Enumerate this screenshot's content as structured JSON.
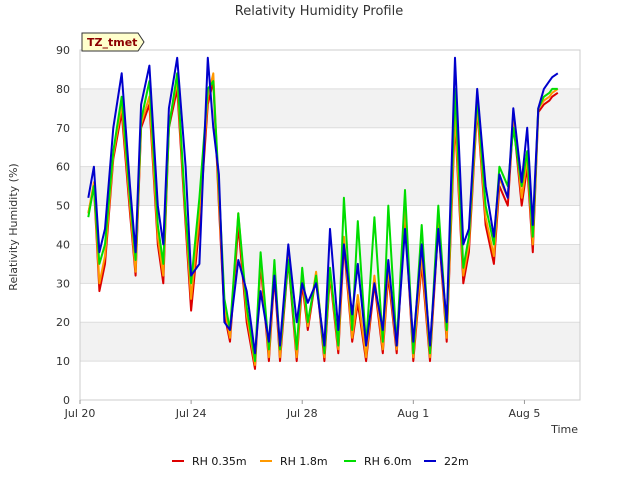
{
  "chart_data": {
    "type": "line",
    "title": "Relativity Humidity Profile",
    "xlabel": "Time",
    "ylabel": "Relativity Humidity (%)",
    "site_label": "TZ_tmet",
    "ylim": [
      0,
      90
    ],
    "xlim": [
      0,
      18
    ],
    "x_unit": "days since Jul 20",
    "y_ticks": [
      0,
      10,
      20,
      30,
      40,
      50,
      60,
      70,
      80,
      90
    ],
    "x_ticks": [
      {
        "value": 0,
        "label": "Jul 20"
      },
      {
        "value": 4,
        "label": "Jul 24"
      },
      {
        "value": 8,
        "label": "Jul 28"
      },
      {
        "value": 12,
        "label": "Aug 1"
      },
      {
        "value": 16,
        "label": "Aug 5"
      }
    ],
    "grid": true,
    "legend_position": "bottom",
    "series": [
      {
        "name": "RH 0.35m",
        "color": "#dd0000",
        "x": [
          0.3,
          0.5,
          0.7,
          0.9,
          1.2,
          1.5,
          1.8,
          2.0,
          2.2,
          2.5,
          2.8,
          3.0,
          3.2,
          3.5,
          3.8,
          4.0,
          4.3,
          4.6,
          4.8,
          5.0,
          5.2,
          5.4,
          5.7,
          6.0,
          6.3,
          6.5,
          6.8,
          7.0,
          7.2,
          7.5,
          7.8,
          8.0,
          8.2,
          8.5,
          8.8,
          9.0,
          9.3,
          9.5,
          9.8,
          10.0,
          10.3,
          10.6,
          10.9,
          11.1,
          11.4,
          11.7,
          12.0,
          12.3,
          12.6,
          12.9,
          13.2,
          13.5,
          13.8,
          14.0,
          14.3,
          14.6,
          14.9,
          15.1,
          15.4,
          15.6,
          15.9,
          16.1,
          16.3,
          16.5,
          16.7,
          16.9,
          17.0,
          17.2
        ],
        "values": [
          48,
          55,
          28,
          35,
          62,
          74,
          48,
          32,
          70,
          76,
          40,
          30,
          70,
          80,
          45,
          23,
          45,
          76,
          82,
          50,
          22,
          15,
          45,
          20,
          8,
          35,
          10,
          32,
          10,
          36,
          10,
          30,
          18,
          32,
          10,
          32,
          12,
          40,
          15,
          25,
          10,
          30,
          12,
          32,
          12,
          48,
          10,
          35,
          10,
          45,
          15,
          72,
          30,
          38,
          75,
          45,
          35,
          55,
          50,
          72,
          50,
          60,
          38,
          74,
          76,
          77,
          78,
          79
        ]
      },
      {
        "name": "RH 1.8m",
        "color": "#ff9900",
        "x": [
          0.3,
          0.5,
          0.7,
          0.9,
          1.2,
          1.5,
          1.8,
          2.0,
          2.2,
          2.5,
          2.8,
          3.0,
          3.2,
          3.5,
          3.8,
          4.0,
          4.3,
          4.6,
          4.8,
          5.0,
          5.2,
          5.4,
          5.7,
          6.0,
          6.3,
          6.5,
          6.8,
          7.0,
          7.2,
          7.5,
          7.8,
          8.0,
          8.2,
          8.5,
          8.8,
          9.0,
          9.3,
          9.5,
          9.8,
          10.0,
          10.3,
          10.6,
          10.9,
          11.1,
          11.4,
          11.7,
          12.0,
          12.3,
          12.6,
          12.9,
          13.2,
          13.5,
          13.8,
          14.0,
          14.3,
          14.6,
          14.9,
          15.1,
          15.4,
          15.6,
          15.9,
          16.1,
          16.3,
          16.5,
          16.7,
          16.9,
          17.0,
          17.2
        ],
        "values": [
          48,
          56,
          30,
          37,
          63,
          76,
          50,
          33,
          71,
          78,
          42,
          32,
          71,
          82,
          47,
          26,
          48,
          78,
          84,
          52,
          24,
          16,
          48,
          22,
          9,
          37,
          11,
          34,
          11,
          38,
          11,
          32,
          19,
          33,
          11,
          33,
          13,
          42,
          16,
          27,
          11,
          32,
          13,
          34,
          13,
          50,
          11,
          37,
          11,
          47,
          16,
          74,
          32,
          40,
          76,
          47,
          37,
          57,
          52,
          73,
          52,
          62,
          40,
          75,
          77,
          78,
          79,
          80
        ]
      },
      {
        "name": "RH 6.0m",
        "color": "#00dd00",
        "x": [
          0.3,
          0.5,
          0.7,
          0.9,
          1.2,
          1.5,
          1.8,
          2.0,
          2.2,
          2.5,
          2.8,
          3.0,
          3.2,
          3.5,
          3.8,
          4.0,
          4.3,
          4.6,
          4.8,
          5.0,
          5.2,
          5.4,
          5.7,
          6.0,
          6.3,
          6.5,
          6.8,
          7.0,
          7.2,
          7.5,
          7.8,
          8.0,
          8.2,
          8.5,
          8.8,
          9.0,
          9.3,
          9.5,
          9.8,
          10.0,
          10.3,
          10.6,
          10.9,
          11.1,
          11.4,
          11.7,
          12.0,
          12.3,
          12.6,
          12.9,
          13.2,
          13.5,
          13.8,
          14.0,
          14.3,
          14.6,
          14.9,
          15.1,
          15.4,
          15.6,
          15.9,
          16.1,
          16.3,
          16.5,
          16.7,
          16.9,
          17.0,
          17.2
        ],
        "values": [
          47,
          55,
          35,
          40,
          64,
          78,
          52,
          36,
          72,
          82,
          45,
          35,
          70,
          84,
          48,
          30,
          52,
          80,
          82,
          55,
          26,
          18,
          48,
          24,
          10,
          38,
          13,
          36,
          13,
          36,
          13,
          34,
          20,
          32,
          12,
          34,
          14,
          52,
          18,
          46,
          14,
          47,
          15,
          50,
          14,
          54,
          12,
          45,
          12,
          50,
          18,
          80,
          34,
          42,
          78,
          50,
          40,
          60,
          55,
          70,
          55,
          64,
          42,
          75,
          78,
          79,
          80,
          80
        ]
      },
      {
        "name": "22m",
        "color": "#0000cc",
        "x": [
          0.3,
          0.5,
          0.7,
          0.9,
          1.2,
          1.5,
          1.8,
          2.0,
          2.2,
          2.5,
          2.8,
          3.0,
          3.2,
          3.5,
          3.8,
          4.0,
          4.3,
          4.6,
          4.8,
          5.0,
          5.2,
          5.4,
          5.7,
          6.0,
          6.3,
          6.5,
          6.8,
          7.0,
          7.2,
          7.5,
          7.8,
          8.0,
          8.2,
          8.5,
          8.8,
          9.0,
          9.3,
          9.5,
          9.8,
          10.0,
          10.3,
          10.6,
          10.9,
          11.1,
          11.4,
          11.7,
          12.0,
          12.3,
          12.6,
          12.9,
          13.2,
          13.5,
          13.8,
          14.0,
          14.3,
          14.6,
          14.9,
          15.1,
          15.4,
          15.6,
          15.9,
          16.1,
          16.3,
          16.5,
          16.7,
          16.9,
          17.0,
          17.2
        ],
        "values": [
          52,
          60,
          38,
          44,
          70,
          84,
          55,
          38,
          76,
          86,
          50,
          40,
          75,
          88,
          60,
          32,
          35,
          88,
          70,
          58,
          20,
          18,
          36,
          28,
          12,
          28,
          15,
          32,
          14,
          40,
          20,
          30,
          25,
          30,
          14,
          44,
          18,
          40,
          22,
          35,
          14,
          30,
          18,
          36,
          14,
          44,
          15,
          40,
          14,
          44,
          20,
          88,
          40,
          44,
          80,
          55,
          42,
          58,
          52,
          75,
          56,
          70,
          45,
          75,
          80,
          82,
          83,
          84
        ]
      }
    ]
  }
}
